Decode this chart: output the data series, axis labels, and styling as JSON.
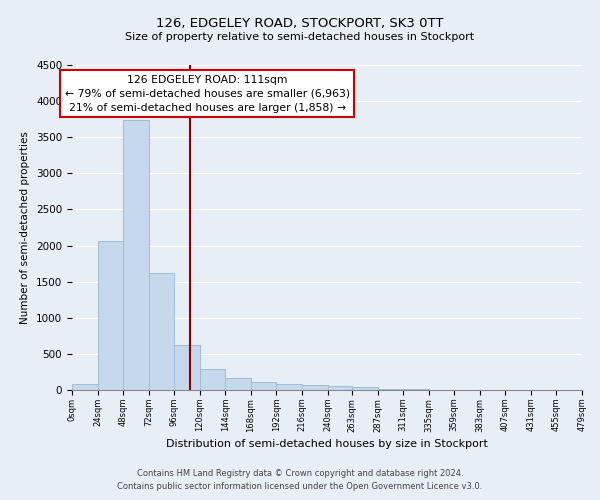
{
  "title": "126, EDGELEY ROAD, STOCKPORT, SK3 0TT",
  "subtitle": "Size of property relative to semi-detached houses in Stockport",
  "xlabel": "Distribution of semi-detached houses by size in Stockport",
  "ylabel": "Number of semi-detached properties",
  "bin_edges": [
    0,
    24,
    48,
    72,
    96,
    120,
    144,
    168,
    192,
    216,
    240,
    263,
    287,
    311,
    335,
    359,
    383,
    407,
    431,
    455,
    479
  ],
  "bar_heights": [
    80,
    2060,
    3740,
    1620,
    630,
    290,
    160,
    110,
    85,
    65,
    50,
    35,
    20,
    10,
    5,
    3,
    2,
    1,
    0,
    0
  ],
  "bar_color": "#c6d9ec",
  "bar_edge_color": "#a0bcd8",
  "property_size": 111,
  "annotation_title": "126 EDGELEY ROAD: 111sqm",
  "annotation_line1": "← 79% of semi-detached houses are smaller (6,963)",
  "annotation_line2": "21% of semi-detached houses are larger (1,858) →",
  "vline_color": "#8b0000",
  "annotation_box_color": "#ffffff",
  "annotation_box_edge": "#cc0000",
  "ylim": [
    0,
    4500
  ],
  "tick_labels": [
    "0sqm",
    "24sqm",
    "48sqm",
    "72sqm",
    "96sqm",
    "120sqm",
    "144sqm",
    "168sqm",
    "192sqm",
    "216sqm",
    "240sqm",
    "263sqm",
    "287sqm",
    "311sqm",
    "335sqm",
    "359sqm",
    "383sqm",
    "407sqm",
    "431sqm",
    "455sqm",
    "479sqm"
  ],
  "footnote1": "Contains HM Land Registry data © Crown copyright and database right 2024.",
  "footnote2": "Contains public sector information licensed under the Open Government Licence v3.0.",
  "background_color": "#e8eef5",
  "grid_color": "#ffffff",
  "yticks": [
    0,
    500,
    1000,
    1500,
    2000,
    2500,
    3000,
    3500,
    4000,
    4500
  ]
}
